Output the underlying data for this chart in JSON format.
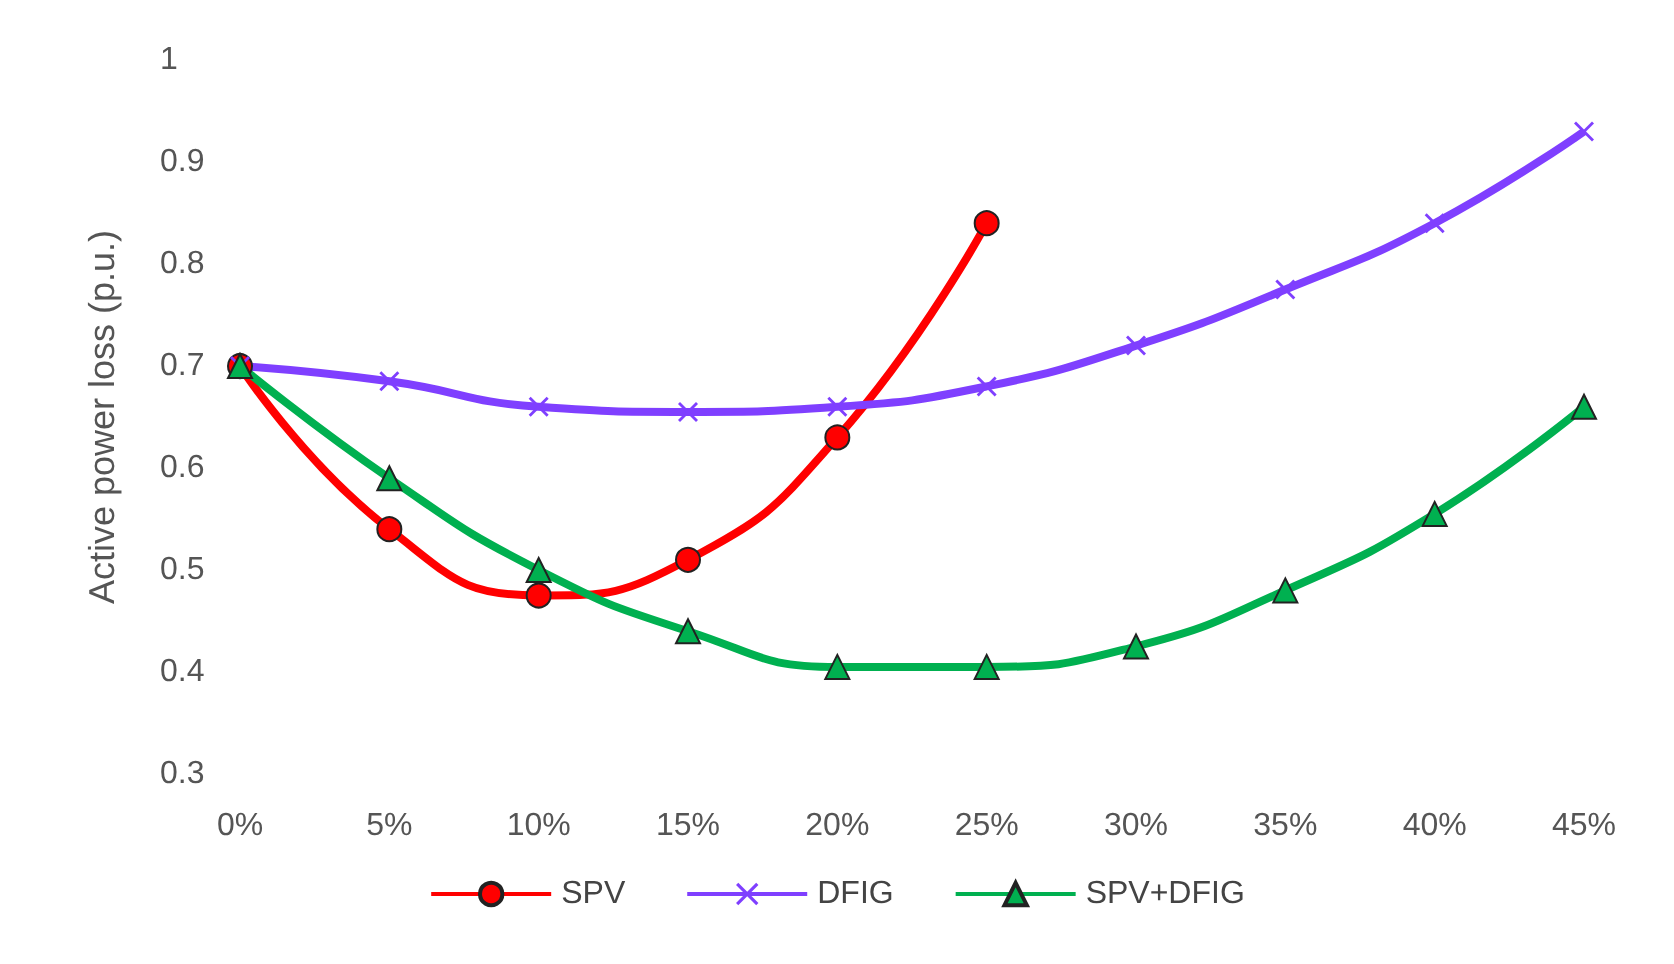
{
  "chart_data": {
    "type": "line",
    "ylabel": "Active power loss (p.u.)",
    "categories": [
      "0%",
      "5%",
      "10%",
      "15%",
      "20%",
      "25%",
      "30%",
      "35%",
      "40%",
      "45%"
    ],
    "series": [
      {
        "name": "SPV",
        "color": "#ff0000",
        "marker": "circle",
        "values": [
          0.7,
          0.54,
          0.475,
          0.51,
          0.63,
          0.84,
          null,
          null,
          null,
          null
        ]
      },
      {
        "name": "DFIG",
        "color": "#7f3fff",
        "marker": "cross",
        "values": [
          0.7,
          0.685,
          0.66,
          0.655,
          0.66,
          0.68,
          0.72,
          0.775,
          0.84,
          0.93
        ]
      },
      {
        "name": "SPV+DFIG",
        "color": "#00b050",
        "marker": "triangle",
        "values": [
          0.7,
          0.59,
          0.5,
          0.44,
          0.405,
          0.405,
          0.425,
          0.48,
          0.555,
          0.66
        ]
      }
    ],
    "ylim": [
      0.3,
      1
    ],
    "yticks": [
      0.3,
      0.4,
      0.5,
      0.6,
      0.7,
      0.8,
      0.9,
      1
    ],
    "grid": false,
    "legend": "bottom",
    "line_style": "solid"
  }
}
